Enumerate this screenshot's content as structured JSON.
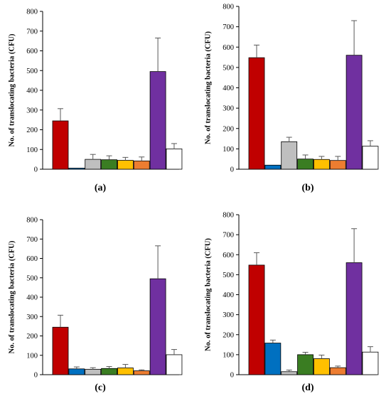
{
  "colors": {
    "palette": [
      "#c00000",
      "#0070c0",
      "#bfbfbf",
      "#3a7d22",
      "#ffc000",
      "#ed7d31",
      "#7030a0",
      "#ffffff"
    ],
    "bar_outline": "#000000",
    "error_bar": "#595959",
    "axis": "#000000"
  },
  "chart_data": [
    {
      "type": "bar",
      "panel": "(a)",
      "ylabel": "No. of translocating bacteria (CFU)",
      "ylim": [
        0,
        800
      ],
      "yticks": [
        0,
        100,
        200,
        300,
        400,
        500,
        600,
        700,
        800
      ],
      "values": [
        245,
        5,
        50,
        48,
        45,
        42,
        495,
        103
      ],
      "errors": [
        62,
        0,
        25,
        20,
        15,
        20,
        170,
        27
      ],
      "grid": false,
      "legend": "none"
    },
    {
      "type": "bar",
      "panel": "(b)",
      "ylabel": "No. of translocating bacteria (CFU)",
      "ylim": [
        0,
        800
      ],
      "yticks": [
        0,
        100,
        200,
        300,
        400,
        500,
        600,
        700,
        800
      ],
      "values": [
        548,
        20,
        135,
        50,
        48,
        43,
        560,
        113
      ],
      "errors": [
        62,
        0,
        22,
        20,
        15,
        20,
        170,
        27
      ],
      "grid": false,
      "legend": "none"
    },
    {
      "type": "bar",
      "panel": "(c)",
      "ylabel": "No. of translocating bacteria (CFU)",
      "ylim": [
        0,
        800
      ],
      "yticks": [
        0,
        100,
        200,
        300,
        400,
        500,
        600,
        700,
        800
      ],
      "values": [
        245,
        30,
        28,
        32,
        35,
        20,
        495,
        103
      ],
      "errors": [
        62,
        10,
        8,
        10,
        18,
        5,
        170,
        27
      ],
      "grid": false,
      "legend": "none"
    },
    {
      "type": "bar",
      "panel": "(d)",
      "ylabel": "No. of translocating bacteria (CFU)",
      "ylim": [
        0,
        800
      ],
      "yticks": [
        0,
        100,
        200,
        300,
        400,
        500,
        600,
        700,
        800
      ],
      "values": [
        548,
        158,
        15,
        100,
        80,
        35,
        560,
        113
      ],
      "errors": [
        62,
        15,
        8,
        12,
        18,
        8,
        170,
        27
      ],
      "grid": false,
      "legend": "none"
    }
  ]
}
